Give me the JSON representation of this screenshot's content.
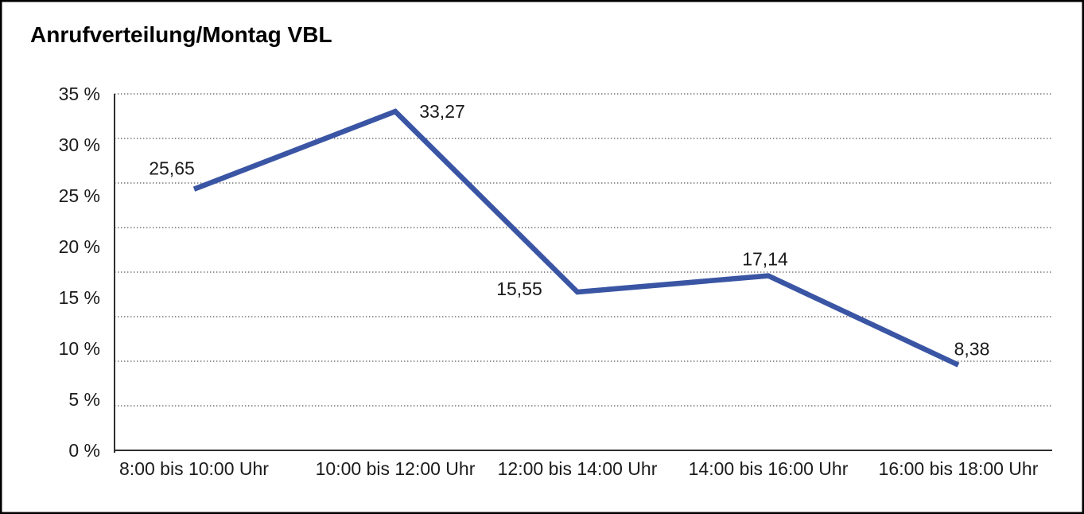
{
  "title": "Anrufverteilung/Montag VBL",
  "chart_data": {
    "type": "line",
    "title": "Anrufverteilung/Montag VBL",
    "categories": [
      "8:00 bis 10:00 Uhr",
      "10:00 bis 12:00 Uhr",
      "12:00 bis 14:00 Uhr",
      "14:00 bis 16:00 Uhr",
      "16:00 bis 18:00 Uhr"
    ],
    "values": [
      25.65,
      33.27,
      15.55,
      17.14,
      8.38
    ],
    "value_labels": [
      "25,65",
      "33,27",
      "15,55",
      "17,14",
      "8,38"
    ],
    "y_ticks": [
      "35 %",
      "30 %",
      "25 %",
      "20 %",
      "15 %",
      "10 %",
      "5 %",
      "0 %"
    ],
    "ylim": [
      0,
      35
    ],
    "xlabel": "",
    "ylabel": "",
    "grid": "horizontal-dotted",
    "legend": "none",
    "line_color": "#3A55A4",
    "axis_color": "#303030",
    "grid_color": "#555555",
    "text_color": "#1b1b1b",
    "frame_color": "#000000"
  }
}
